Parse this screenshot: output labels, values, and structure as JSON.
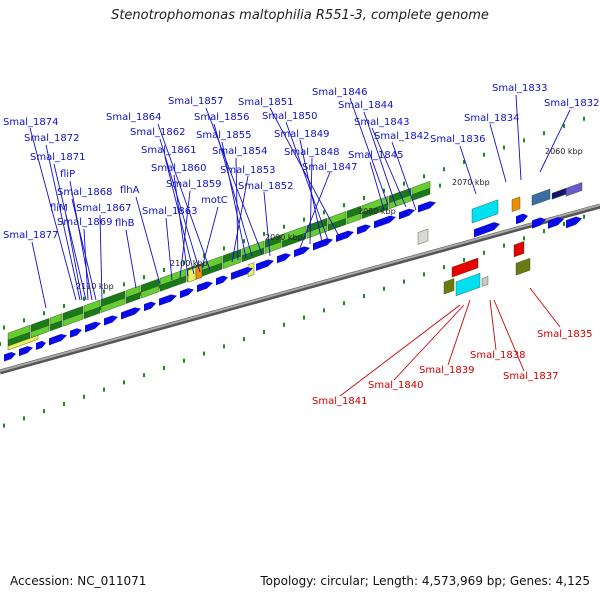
{
  "title": "Stenotrophomonas maltophilia R551-3, complete genome",
  "accession_label": "Accession: NC_011071",
  "summary_label": "Topology: circular; Length: 4,573,969 bp; Genes: 4,125",
  "colors": {
    "background": "#ffffff",
    "backbone": "#808080",
    "cds_forward": "#0a0ae6",
    "orf_light_green": "#66cc33",
    "orf_dark_green": "#1a7a1a",
    "orf_light_yellow": "#e8f060",
    "orf_orange": "#f08c00",
    "orf_cyan": "#00e0f0",
    "orf_red": "#e60000",
    "orf_olive": "#6b7a10",
    "orf_steelblue": "#3a6ea5",
    "orf_navy": "#14146e",
    "orf_slate": "#6a5acd",
    "tick_green": "#1a8c1a",
    "label_blue": "#1010cc",
    "label_red": "#cc0000"
  },
  "scale_labels": [
    "2060 kbp",
    "2070 kbp",
    "2080 kbp",
    "2090 kbp",
    "2100 kbp",
    "2110 kbp"
  ],
  "blue_labels": [
    "Smal_1833",
    "Smal_1832",
    "Smal_1834",
    "Smal_1836",
    "Smal_1846",
    "Smal_1844",
    "Smal_1843",
    "Smal_1842",
    "Smal_1845",
    "Smal_1851",
    "Smal_1850",
    "Smal_1849",
    "Smal_1848",
    "Smal_1847",
    "Smal_1857",
    "Smal_1856",
    "Smal_1855",
    "Smal_1854",
    "Smal_1853",
    "Smal_1852",
    "Smal_1864",
    "Smal_1862",
    "Smal_1861",
    "Smal_1860",
    "Smal_1859",
    "Smal_1863",
    "motC",
    "flhA",
    "flhB",
    "Smal_1874",
    "Smal_1872",
    "Smal_1871",
    "fliP",
    "Smal_1868",
    "fliM",
    "Smal_1867",
    "Smal_1869",
    "Smal_1877"
  ],
  "red_labels": [
    "Smal_1835",
    "Smal_1838",
    "Smal_1837",
    "Smal_1839",
    "Smal_1840",
    "Smal_1841"
  ]
}
